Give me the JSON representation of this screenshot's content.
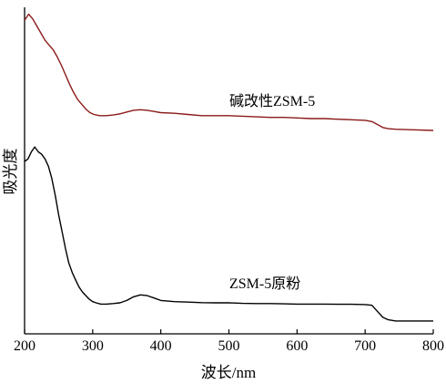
{
  "chart_data": {
    "type": "line",
    "title": "",
    "xlabel": "波长/nm",
    "ylabel": "吸光度",
    "xlim": [
      200,
      800
    ],
    "xticks": [
      200,
      300,
      400,
      500,
      600,
      700,
      800
    ],
    "y_ticks_shown": false,
    "grid": false,
    "series": [
      {
        "name": "碱改性ZSM-5",
        "color": "#8b1a1a",
        "points": [
          [
            200,
            93
          ],
          [
            206,
            98
          ],
          [
            212,
            94
          ],
          [
            218,
            88
          ],
          [
            224,
            82
          ],
          [
            230,
            76
          ],
          [
            236,
            72
          ],
          [
            242,
            68
          ],
          [
            248,
            62
          ],
          [
            254,
            55
          ],
          [
            260,
            47
          ],
          [
            266,
            39
          ],
          [
            272,
            32
          ],
          [
            278,
            26
          ],
          [
            284,
            22
          ],
          [
            290,
            18
          ],
          [
            296,
            15
          ],
          [
            302,
            13.5
          ],
          [
            310,
            12.5
          ],
          [
            320,
            12.5
          ],
          [
            330,
            13
          ],
          [
            340,
            14
          ],
          [
            350,
            15.5
          ],
          [
            360,
            17
          ],
          [
            370,
            17.5
          ],
          [
            380,
            17
          ],
          [
            390,
            16
          ],
          [
            400,
            15
          ],
          [
            420,
            14.5
          ],
          [
            440,
            13.5
          ],
          [
            460,
            12.5
          ],
          [
            480,
            12.5
          ],
          [
            500,
            12.5
          ],
          [
            520,
            12
          ],
          [
            540,
            11.5
          ],
          [
            560,
            11
          ],
          [
            580,
            11
          ],
          [
            600,
            10.5
          ],
          [
            620,
            10
          ],
          [
            640,
            10
          ],
          [
            660,
            9.5
          ],
          [
            680,
            9
          ],
          [
            700,
            8.5
          ],
          [
            710,
            7.5
          ],
          [
            718,
            5
          ],
          [
            726,
            2.5
          ],
          [
            734,
            1.5
          ],
          [
            745,
            1
          ],
          [
            770,
            0.5
          ],
          [
            800,
            0
          ]
        ]
      },
      {
        "name": "ZSM-5原粉",
        "color": "#000000",
        "points": [
          [
            200,
            60
          ],
          [
            205,
            61
          ],
          [
            210,
            64
          ],
          [
            215,
            66
          ],
          [
            220,
            64
          ],
          [
            225,
            63
          ],
          [
            230,
            61
          ],
          [
            235,
            58
          ],
          [
            240,
            53
          ],
          [
            245,
            46
          ],
          [
            250,
            38
          ],
          [
            255,
            31
          ],
          [
            260,
            24
          ],
          [
            265,
            18
          ],
          [
            270,
            14
          ],
          [
            275,
            11
          ],
          [
            280,
            8
          ],
          [
            285,
            6
          ],
          [
            290,
            4.5
          ],
          [
            295,
            3
          ],
          [
            300,
            2
          ],
          [
            305,
            1.5
          ],
          [
            312,
            1
          ],
          [
            320,
            1
          ],
          [
            330,
            1.2
          ],
          [
            340,
            1.5
          ],
          [
            350,
            2.5
          ],
          [
            360,
            4
          ],
          [
            370,
            4.8
          ],
          [
            380,
            4.5
          ],
          [
            390,
            3.5
          ],
          [
            400,
            2.5
          ],
          [
            420,
            2
          ],
          [
            440,
            1.8
          ],
          [
            460,
            1.6
          ],
          [
            480,
            1.5
          ],
          [
            500,
            1.5
          ],
          [
            520,
            1.3
          ],
          [
            540,
            1.2
          ],
          [
            560,
            1.2
          ],
          [
            580,
            1.1
          ],
          [
            600,
            1
          ],
          [
            620,
            1
          ],
          [
            640,
            1
          ],
          [
            660,
            0.9
          ],
          [
            680,
            0.9
          ],
          [
            700,
            0.8
          ],
          [
            710,
            0.5
          ],
          [
            718,
            -2
          ],
          [
            726,
            -4.5
          ],
          [
            734,
            -5.5
          ],
          [
            745,
            -6
          ],
          [
            770,
            -6
          ],
          [
            800,
            -6
          ]
        ]
      }
    ]
  }
}
